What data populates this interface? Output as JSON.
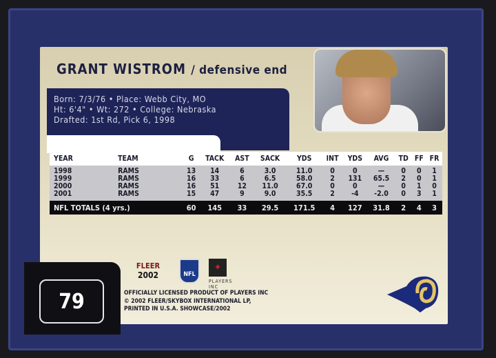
{
  "player": {
    "name": "GRANT WISTROM",
    "position": "/ defensive end"
  },
  "bio": {
    "line1": "Born: 7/3/76 • Place: Webb City, MO",
    "line2": "Ht: 6'4\" • Wt: 272 • College: Nebraska",
    "line3": "Drafted: 1st Rd, Pick 6, 1998"
  },
  "stats": {
    "headers": [
      "YEAR",
      "TEAM",
      "G",
      "TACK",
      "AST",
      "SACK",
      "YDS",
      "INT",
      "YDS",
      "AVG",
      "TD",
      "FF",
      "FR"
    ],
    "rows": [
      [
        "1998",
        "RAMS",
        "13",
        "14",
        "6",
        "3.0",
        "11.0",
        "0",
        "0",
        "—",
        "0",
        "0",
        "1"
      ],
      [
        "1999",
        "RAMS",
        "16",
        "33",
        "6",
        "6.5",
        "58.0",
        "2",
        "131",
        "65.5",
        "2",
        "0",
        "1"
      ],
      [
        "2000",
        "RAMS",
        "16",
        "51",
        "12",
        "11.0",
        "67.0",
        "0",
        "0",
        "—",
        "0",
        "1",
        "0"
      ],
      [
        "2001",
        "RAMS",
        "15",
        "47",
        "9",
        "9.0",
        "35.5",
        "2",
        "-4",
        "-2.0",
        "0",
        "3",
        "1"
      ]
    ],
    "totals": [
      "NFL TOTALS (4 yrs.)",
      "60",
      "145",
      "33",
      "29.5",
      "171.5",
      "4",
      "127",
      "31.8",
      "2",
      "4",
      "3"
    ]
  },
  "card_number": "79",
  "logos": {
    "fleer": "FLEER",
    "fleer_year": "2002",
    "nfl": "NFL",
    "players": "PLAYERS INC"
  },
  "legal": {
    "line1": "OFFICIALLY LICENSED PRODUCT OF PLAYERS INC",
    "line2": "© 2002 FLEER/SKYBOX INTERNATIONAL LP,",
    "line3": "PRINTED IN U.S.A. SHOWCASE/2002"
  },
  "colors": {
    "frame": "#28306a",
    "bio_box": "#1e2458",
    "panel": "#e2dabd"
  }
}
